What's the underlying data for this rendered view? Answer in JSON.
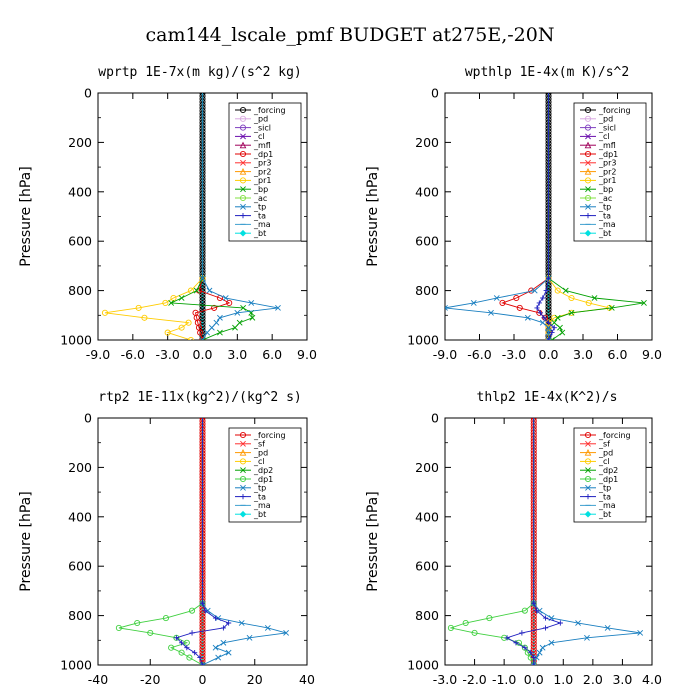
{
  "suptitle": "cam144_lscale_pmf  BUDGET at275E,-20N",
  "chart_data": [
    {
      "type": "line",
      "title": "wprtp",
      "units": "1E-7x(m kg)/(s^2 kg)",
      "ylabel": "Pressure [hPa]",
      "ylim": [
        1000,
        0
      ],
      "xlim": [
        -9.0,
        9.0
      ],
      "xticks": [
        "-9.0",
        "-6.0",
        "-3.0",
        "0.0",
        "3.0",
        "6.0",
        "9.0"
      ],
      "yticks": [
        "0",
        "200",
        "400",
        "600",
        "800",
        "1000"
      ],
      "legend_pos": "top-right",
      "pressure": [
        750,
        800,
        830,
        850,
        870,
        890,
        910,
        930,
        950,
        970,
        1000
      ],
      "series": [
        {
          "name": "_forcing",
          "color": "#000000",
          "marker": "o",
          "values": [
            0,
            0,
            0,
            0,
            0,
            0,
            0,
            0,
            0,
            0,
            0
          ]
        },
        {
          "name": "_pd",
          "color": "#d8a8e0",
          "marker": "o",
          "values": [
            0,
            0,
            0,
            0,
            0,
            0,
            0,
            0,
            0,
            0,
            0
          ]
        },
        {
          "name": "_sicl",
          "color": "#8040c0",
          "marker": "o",
          "values": [
            0,
            0,
            0,
            0,
            0,
            0,
            0,
            0,
            0,
            0,
            0
          ]
        },
        {
          "name": "_cl",
          "color": "#6a0dad",
          "marker": "x",
          "values": [
            0,
            0,
            0,
            0,
            0,
            0,
            0,
            0,
            0,
            0,
            0
          ]
        },
        {
          "name": "_mfl",
          "color": "#a0005a",
          "marker": "tri",
          "values": [
            0,
            0,
            0,
            0,
            0,
            0,
            0,
            0,
            0,
            0,
            0
          ]
        },
        {
          "name": "_dp1",
          "color": "#e00000",
          "marker": "o",
          "values": [
            0,
            -0.3,
            1.5,
            2.3,
            1.0,
            -0.6,
            -0.5,
            -0.4,
            -0.3,
            -0.2,
            0
          ]
        },
        {
          "name": "_pr3",
          "color": "#ff3030",
          "marker": "x",
          "values": [
            0,
            0,
            0,
            0,
            0,
            0,
            0,
            0,
            0,
            0,
            0
          ]
        },
        {
          "name": "_pr2",
          "color": "#ff9900",
          "marker": "tri",
          "values": [
            0,
            0,
            0,
            0,
            0,
            0,
            0,
            0,
            0,
            0,
            0
          ]
        },
        {
          "name": "_pr1",
          "color": "#ffcc00",
          "marker": "o",
          "values": [
            0,
            -1.0,
            -2.5,
            -3.2,
            -5.5,
            -8.4,
            -5.0,
            -1.2,
            -1.8,
            -3.0,
            -1.0
          ]
        },
        {
          "name": "_bp",
          "color": "#00a000",
          "marker": "x",
          "values": [
            0,
            -0.5,
            -1.8,
            -2.7,
            3.5,
            4.2,
            4.3,
            3.2,
            2.8,
            1.5,
            0
          ]
        },
        {
          "name": "_ac",
          "color": "#80e040",
          "marker": "o",
          "values": [
            0,
            0,
            0,
            0,
            0,
            0,
            0,
            0,
            0,
            0,
            0
          ]
        },
        {
          "name": "_tp",
          "color": "#1a7fc0",
          "marker": "x",
          "values": [
            0,
            0.6,
            2.0,
            4.2,
            6.5,
            3.0,
            1.5,
            1.2,
            0.8,
            0.4,
            0
          ]
        },
        {
          "name": "_ta",
          "color": "#2020c0",
          "marker": "plus",
          "values": [
            0,
            0,
            0,
            0,
            0,
            0,
            0,
            0,
            0,
            0,
            0
          ]
        },
        {
          "name": "_ma",
          "color": "#40a0d0",
          "marker": "dash",
          "values": [
            0,
            0,
            0,
            0,
            0,
            0,
            0,
            0,
            0,
            0,
            0
          ]
        },
        {
          "name": "_bt",
          "color": "#00e0e0",
          "marker": "dia",
          "values": [
            0,
            0,
            0,
            0,
            0,
            0,
            0,
            0,
            0,
            0,
            0
          ]
        }
      ]
    },
    {
      "type": "line",
      "title": "wpthlp",
      "units": "1E-4x(m K)/s^2",
      "ylabel": "Pressure [hPa]",
      "ylim": [
        1000,
        0
      ],
      "xlim": [
        -9.0,
        9.0
      ],
      "xticks": [
        "-9.0",
        "-6.0",
        "-3.0",
        "0.0",
        "3.0",
        "6.0",
        "9.0"
      ],
      "yticks": [
        "0",
        "200",
        "400",
        "600",
        "800",
        "1000"
      ],
      "legend_pos": "top-right",
      "pressure": [
        750,
        800,
        830,
        850,
        870,
        890,
        910,
        930,
        950,
        970,
        1000
      ],
      "series": [
        {
          "name": "_forcing",
          "color": "#000000",
          "marker": "o",
          "values": [
            0,
            0,
            0,
            0,
            0,
            0,
            0,
            0,
            0,
            0,
            0
          ]
        },
        {
          "name": "_pd",
          "color": "#d8a8e0",
          "marker": "o",
          "values": [
            0,
            0,
            0,
            0,
            0,
            0,
            0,
            0,
            0,
            0,
            0
          ]
        },
        {
          "name": "_sicl",
          "color": "#8040c0",
          "marker": "o",
          "values": [
            0,
            0,
            0,
            0,
            0,
            0,
            0,
            0,
            0,
            0,
            0
          ]
        },
        {
          "name": "_cl",
          "color": "#6a0dad",
          "marker": "x",
          "values": [
            0,
            0,
            0,
            0,
            0,
            0,
            0,
            0,
            0,
            0,
            0
          ]
        },
        {
          "name": "_mfl",
          "color": "#a0005a",
          "marker": "tri",
          "values": [
            0,
            0,
            0,
            0,
            0,
            0,
            0,
            0,
            0,
            0,
            0
          ]
        },
        {
          "name": "_dp1",
          "color": "#e00000",
          "marker": "o",
          "values": [
            0,
            -1.5,
            -2.8,
            -4.0,
            -2.5,
            -0.8,
            -0.3,
            0,
            0,
            0,
            0
          ]
        },
        {
          "name": "_pr3",
          "color": "#ff3030",
          "marker": "x",
          "values": [
            0,
            0,
            0,
            0,
            0,
            0,
            0,
            0,
            0,
            0,
            0
          ]
        },
        {
          "name": "_pr2",
          "color": "#ff9900",
          "marker": "tri",
          "values": [
            0,
            0,
            0,
            0,
            0,
            0,
            0,
            0,
            0,
            0,
            0
          ]
        },
        {
          "name": "_pr1",
          "color": "#ffcc00",
          "marker": "o",
          "values": [
            0,
            0.8,
            2.0,
            3.5,
            5.3,
            2.0,
            0.5,
            0,
            0,
            0,
            0
          ]
        },
        {
          "name": "_bp",
          "color": "#00a000",
          "marker": "x",
          "values": [
            0,
            1.5,
            4.0,
            8.3,
            5.5,
            2.0,
            0.8,
            0.5,
            1.0,
            1.2,
            0.3
          ]
        },
        {
          "name": "_ac",
          "color": "#80e040",
          "marker": "o",
          "values": [
            0,
            0,
            0,
            0,
            0,
            0,
            0,
            0,
            0,
            0,
            0
          ]
        },
        {
          "name": "_tp",
          "color": "#1a7fc0",
          "marker": "x",
          "values": [
            0,
            -1.2,
            -4.5,
            -6.5,
            -9.0,
            -5.0,
            -1.8,
            -0.5,
            0,
            0,
            0
          ]
        },
        {
          "name": "_ta",
          "color": "#2020c0",
          "marker": "plus",
          "values": [
            0,
            -0.2,
            -0.5,
            -0.8,
            -1.0,
            -0.7,
            -0.4,
            0,
            0.5,
            0.3,
            0
          ]
        },
        {
          "name": "_ma",
          "color": "#40a0d0",
          "marker": "dash",
          "values": [
            0,
            0,
            0,
            0,
            0,
            0,
            0,
            0,
            0,
            0,
            0
          ]
        },
        {
          "name": "_bt",
          "color": "#00e0e0",
          "marker": "dia",
          "values": [
            0,
            0,
            0,
            0,
            0,
            0,
            0,
            0,
            0,
            0,
            0
          ]
        }
      ]
    },
    {
      "type": "line",
      "title": "rtp2",
      "units": "1E-11x(kg^2)/(kg^2 s)",
      "ylabel": "Pressure [hPa]",
      "ylim": [
        1000,
        0
      ],
      "xlim": [
        -40,
        40
      ],
      "xticks": [
        "-40",
        "-20",
        "0",
        "20",
        "40"
      ],
      "yticks": [
        "0",
        "200",
        "400",
        "600",
        "800",
        "1000"
      ],
      "legend_pos": "top-right",
      "pressure": [
        750,
        780,
        810,
        830,
        850,
        870,
        890,
        910,
        930,
        950,
        970,
        1000
      ],
      "series": [
        {
          "name": "_forcing",
          "color": "#e00000",
          "marker": "o",
          "values": [
            0,
            0,
            0,
            0,
            0,
            0,
            0,
            0,
            0,
            0,
            0,
            0
          ]
        },
        {
          "name": "_sf",
          "color": "#ff3030",
          "marker": "x",
          "values": [
            0,
            0,
            0,
            0,
            0,
            0,
            0,
            0,
            0,
            0,
            0,
            0
          ]
        },
        {
          "name": "_pd",
          "color": "#ff9900",
          "marker": "tri",
          "values": [
            0,
            0,
            0,
            0,
            0,
            0,
            0,
            0,
            0,
            0,
            0,
            0
          ]
        },
        {
          "name": "_cl",
          "color": "#ffcc00",
          "marker": "o",
          "values": [
            0,
            0,
            0,
            0,
            0,
            0,
            0,
            0,
            0,
            0,
            0,
            0
          ]
        },
        {
          "name": "_dp2",
          "color": "#00a000",
          "marker": "x",
          "values": [
            0,
            0,
            0,
            0,
            0,
            0,
            0,
            0,
            0,
            0,
            0,
            0
          ]
        },
        {
          "name": "_dp1",
          "color": "#40d040",
          "marker": "o",
          "values": [
            0,
            -4,
            -14,
            -25,
            -32,
            -20,
            -10,
            -6,
            -12,
            -8,
            -5,
            0
          ]
        },
        {
          "name": "_tp",
          "color": "#1a7fc0",
          "marker": "x",
          "values": [
            0,
            2,
            6,
            15,
            25,
            32,
            18,
            8,
            5,
            10,
            6,
            0
          ]
        },
        {
          "name": "_ta",
          "color": "#2020c0",
          "marker": "plus",
          "values": [
            0,
            1,
            5,
            10,
            8,
            -4,
            -10,
            -8,
            -6,
            -3,
            -1,
            0
          ]
        },
        {
          "name": "_ma",
          "color": "#40a0d0",
          "marker": "dash",
          "values": [
            0,
            0,
            0,
            0,
            0,
            0,
            0,
            0,
            0,
            0,
            0,
            0
          ]
        },
        {
          "name": "_bt",
          "color": "#00e0e0",
          "marker": "dia",
          "values": [
            0,
            0,
            0,
            0,
            0,
            0,
            0,
            0,
            0,
            0,
            0,
            0
          ]
        }
      ]
    },
    {
      "type": "line",
      "title": "thlp2",
      "units": "1E-4x(K^2)/s",
      "ylabel": "Pressure [hPa]",
      "ylim": [
        1000,
        0
      ],
      "xlim": [
        -3.0,
        4.0
      ],
      "xticks": [
        "-3.0",
        "-2.0",
        "-1.0",
        "0.0",
        "1.0",
        "2.0",
        "3.0",
        "4.0"
      ],
      "yticks": [
        "0",
        "200",
        "400",
        "600",
        "800",
        "1000"
      ],
      "legend_pos": "top-right",
      "pressure": [
        750,
        780,
        810,
        830,
        850,
        870,
        890,
        910,
        930,
        950,
        970,
        1000
      ],
      "series": [
        {
          "name": "_forcing",
          "color": "#e00000",
          "marker": "o",
          "values": [
            0,
            0,
            0,
            0,
            0,
            0,
            0,
            0,
            0,
            0,
            0,
            0
          ]
        },
        {
          "name": "_sf",
          "color": "#ff3030",
          "marker": "x",
          "values": [
            0,
            0,
            0,
            0,
            0,
            0,
            0,
            0,
            0,
            0,
            0,
            0
          ]
        },
        {
          "name": "_pd",
          "color": "#ff9900",
          "marker": "tri",
          "values": [
            0,
            0,
            0,
            0,
            0,
            0,
            0,
            0,
            0,
            0,
            0,
            0
          ]
        },
        {
          "name": "_cl",
          "color": "#ffcc00",
          "marker": "o",
          "values": [
            0,
            0,
            0,
            0,
            0,
            0,
            0,
            0,
            0,
            0,
            0,
            0
          ]
        },
        {
          "name": "_dp2",
          "color": "#00a000",
          "marker": "x",
          "values": [
            0,
            0,
            0,
            0,
            0,
            0,
            0,
            0,
            0,
            0,
            0,
            0
          ]
        },
        {
          "name": "_dp1",
          "color": "#40d040",
          "marker": "o",
          "values": [
            0,
            -0.3,
            -1.5,
            -2.3,
            -2.8,
            -2.0,
            -1.0,
            -0.5,
            -0.3,
            -0.2,
            -0.1,
            0
          ]
        },
        {
          "name": "_tp",
          "color": "#1a7fc0",
          "marker": "x",
          "values": [
            0,
            0.2,
            0.6,
            1.5,
            2.5,
            3.6,
            1.8,
            0.6,
            0.3,
            0.2,
            0.1,
            0
          ]
        },
        {
          "name": "_ta",
          "color": "#2020c0",
          "marker": "plus",
          "values": [
            0,
            0.1,
            0.4,
            0.9,
            0.4,
            -0.4,
            -0.9,
            -0.6,
            -0.3,
            -0.1,
            0,
            0
          ]
        },
        {
          "name": "_ma",
          "color": "#40a0d0",
          "marker": "dash",
          "values": [
            0,
            0,
            0,
            0,
            0,
            0,
            0,
            0,
            0,
            0,
            0,
            0
          ]
        },
        {
          "name": "_bt",
          "color": "#00e0e0",
          "marker": "dia",
          "values": [
            0,
            0,
            0,
            0,
            0,
            0,
            0,
            0,
            0,
            0,
            0,
            0
          ]
        }
      ]
    }
  ]
}
